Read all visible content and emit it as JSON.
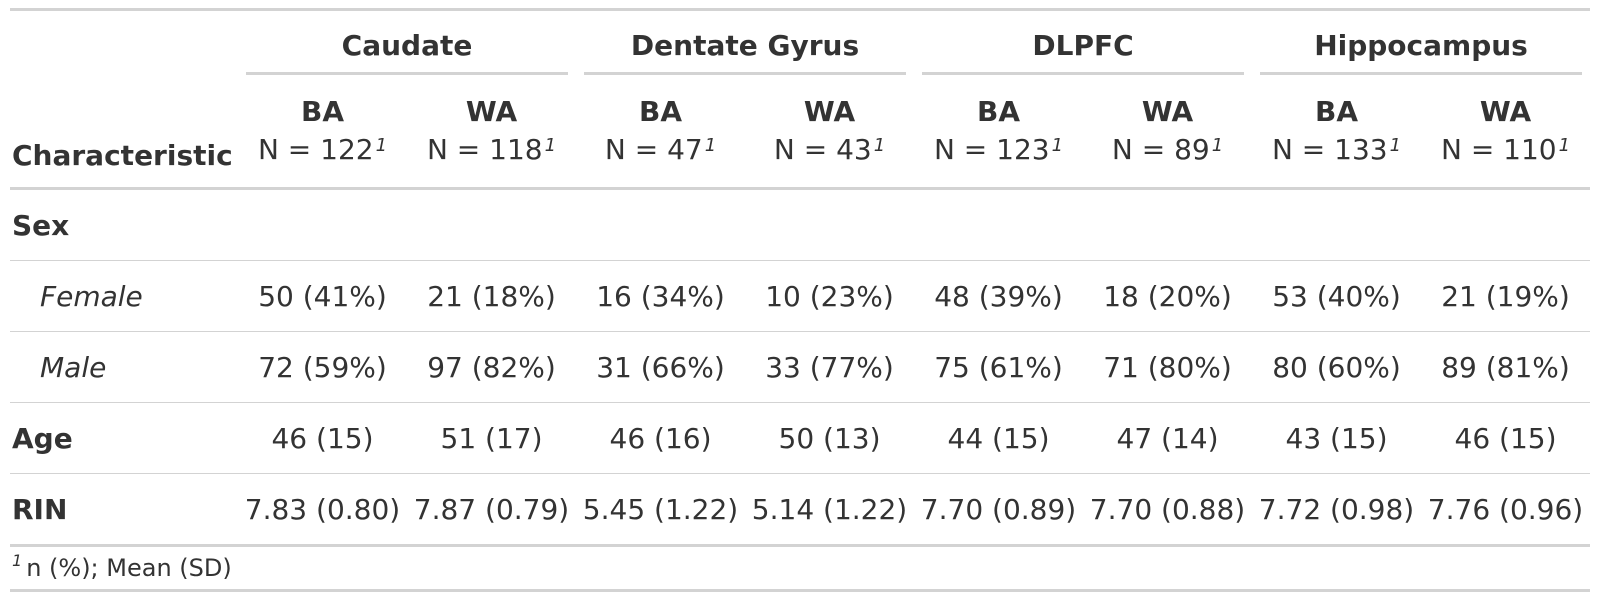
{
  "table": {
    "label_header": "Characteristic",
    "spanners": [
      "Caudate",
      "Dentate Gyrus",
      "DLPFC",
      "Hippocampus"
    ],
    "columns": [
      {
        "group": "BA",
        "n": "N = 122",
        "fn": "1"
      },
      {
        "group": "WA",
        "n": "N = 118",
        "fn": "1"
      },
      {
        "group": "BA",
        "n": "N = 47",
        "fn": "1"
      },
      {
        "group": "WA",
        "n": "N = 43",
        "fn": "1"
      },
      {
        "group": "BA",
        "n": "N = 123",
        "fn": "1"
      },
      {
        "group": "WA",
        "n": "N = 89",
        "fn": "1"
      },
      {
        "group": "BA",
        "n": "N = 133",
        "fn": "1"
      },
      {
        "group": "WA",
        "n": "N = 110",
        "fn": "1"
      }
    ],
    "rows": [
      {
        "label": "Sex",
        "values": [
          "",
          "",
          "",
          "",
          "",
          "",
          "",
          ""
        ]
      },
      {
        "label": "Female",
        "values": [
          "50 (41%)",
          "21 (18%)",
          "16 (34%)",
          "10 (23%)",
          "48 (39%)",
          "18 (20%)",
          "53 (40%)",
          "21 (19%)"
        ]
      },
      {
        "label": "Male",
        "values": [
          "72 (59%)",
          "97 (82%)",
          "31 (66%)",
          "33 (77%)",
          "75 (61%)",
          "71 (80%)",
          "80 (60%)",
          "89 (81%)"
        ]
      },
      {
        "label": "Age",
        "values": [
          "46 (15)",
          "51 (17)",
          "46 (16)",
          "50 (13)",
          "44 (15)",
          "47 (14)",
          "43 (15)",
          "46 (15)"
        ]
      },
      {
        "label": "RIN",
        "values": [
          "7.83 (0.80)",
          "7.87 (0.79)",
          "5.45 (1.22)",
          "5.14 (1.22)",
          "7.70 (0.89)",
          "7.70 (0.88)",
          "7.72 (0.98)",
          "7.76 (0.96)"
        ]
      }
    ],
    "footnote": {
      "mark": "1",
      "text": "n (%); Mean (SD)"
    }
  }
}
